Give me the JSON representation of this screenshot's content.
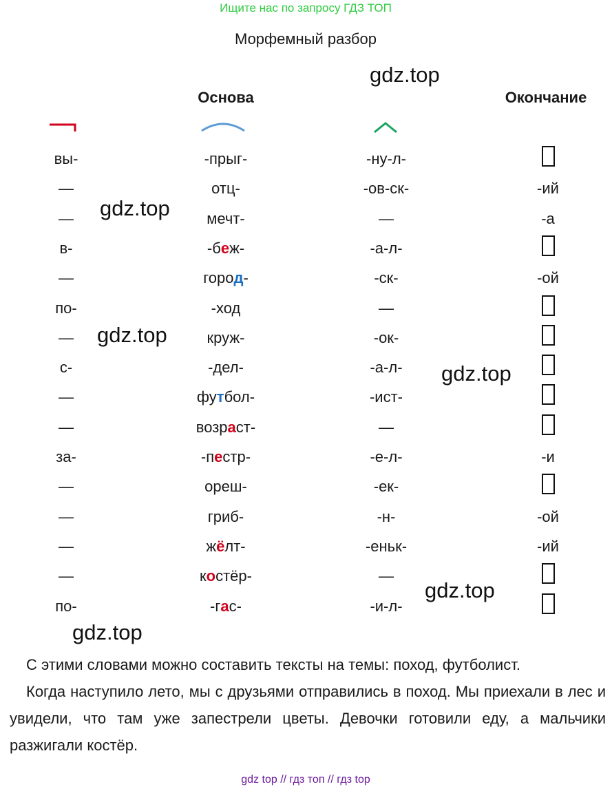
{
  "banner": "Ищите нас по запросу ГДЗ ТОП",
  "title": "Морфемный разбор",
  "watermark": "gdz.top",
  "headers": {
    "stem": "Основа",
    "ending": "Окончание"
  },
  "colors": {
    "banner": "#2ecc40",
    "prefix_mark": "#d0021b",
    "root_mark": "#5b9bd5",
    "suffix_mark": "#1aa260",
    "highlight_red": "#d0021b",
    "highlight_blue": "#1a6fc0",
    "footer": "#6a1b9a"
  },
  "icons": {
    "prefix": "prefix-mark-icon",
    "root": "root-arc-icon",
    "suffix": "suffix-caret-icon",
    "empty_ending": "empty-ending-box-icon"
  },
  "rows": [
    {
      "prefix": "вы-",
      "root": [
        {
          "t": "-прыг-"
        }
      ],
      "suffix": "-ну-л-",
      "ending": "",
      "empty": true
    },
    {
      "prefix": "—",
      "root": [
        {
          "t": "отц-"
        }
      ],
      "suffix": "-ов-ск-",
      "ending": "-ий",
      "empty": false
    },
    {
      "prefix": "—",
      "root": [
        {
          "t": "мечт-"
        }
      ],
      "suffix": "—",
      "ending": "-а",
      "empty": false
    },
    {
      "prefix": "в-",
      "root": [
        {
          "t": "-б"
        },
        {
          "t": "е",
          "c": "red"
        },
        {
          "t": "ж-"
        }
      ],
      "suffix": "-а-л-",
      "ending": "",
      "empty": true
    },
    {
      "prefix": "—",
      "root": [
        {
          "t": "горо"
        },
        {
          "t": "д",
          "c": "blue"
        },
        {
          "t": "-"
        }
      ],
      "suffix": "-ск-",
      "ending": "-ой",
      "empty": false
    },
    {
      "prefix": "по-",
      "root": [
        {
          "t": "-ход"
        }
      ],
      "suffix": "—",
      "ending": "",
      "empty": true
    },
    {
      "prefix": "—",
      "root": [
        {
          "t": "круж-"
        }
      ],
      "suffix": "-ок-",
      "ending": "",
      "empty": true
    },
    {
      "prefix": "с-",
      "root": [
        {
          "t": "-дел-"
        }
      ],
      "suffix": "-а-л-",
      "ending": "",
      "empty": true
    },
    {
      "prefix": "—",
      "root": [
        {
          "t": "фу"
        },
        {
          "t": "т",
          "c": "blue"
        },
        {
          "t": "бол-"
        }
      ],
      "suffix": "-ист-",
      "ending": "",
      "empty": true
    },
    {
      "prefix": "—",
      "root": [
        {
          "t": "возр"
        },
        {
          "t": "а",
          "c": "red"
        },
        {
          "t": "ст-"
        }
      ],
      "suffix": "—",
      "ending": "",
      "empty": true
    },
    {
      "prefix": "за-",
      "root": [
        {
          "t": "-п"
        },
        {
          "t": "е",
          "c": "red"
        },
        {
          "t": "стр-"
        }
      ],
      "suffix": "-е-л-",
      "ending": "-и",
      "empty": false
    },
    {
      "prefix": "—",
      "root": [
        {
          "t": "ореш-"
        }
      ],
      "suffix": "-ек-",
      "ending": "",
      "empty": true
    },
    {
      "prefix": "—",
      "root": [
        {
          "t": "гриб-"
        }
      ],
      "suffix": "-н-",
      "ending": "-ой",
      "empty": false
    },
    {
      "prefix": "—",
      "root": [
        {
          "t": "ж"
        },
        {
          "t": "ё",
          "c": "red"
        },
        {
          "t": "лт-"
        }
      ],
      "suffix": "-еньк-",
      "ending": "-ий",
      "empty": false
    },
    {
      "prefix": "—",
      "root": [
        {
          "t": "к"
        },
        {
          "t": "о",
          "c": "red"
        },
        {
          "t": "стёр-"
        }
      ],
      "suffix": "—",
      "ending": "",
      "empty": true
    },
    {
      "prefix": "по-",
      "root": [
        {
          "t": "-г"
        },
        {
          "t": "а",
          "c": "red"
        },
        {
          "t": "с-"
        }
      ],
      "suffix": "-и-л-",
      "ending": "",
      "empty": true
    }
  ],
  "paragraphs": [
    "С этими словами можно составить тексты на темы: поход, футболист.",
    "Когда наступило лето, мы с друзьями отправились в поход. Мы приехали в лес и увидели, что там уже запестрели цветы. Девочки готовили еду, а мальчики разжигали костёр."
  ],
  "footer": "gdz top  //  гдз топ  //  гдз top"
}
